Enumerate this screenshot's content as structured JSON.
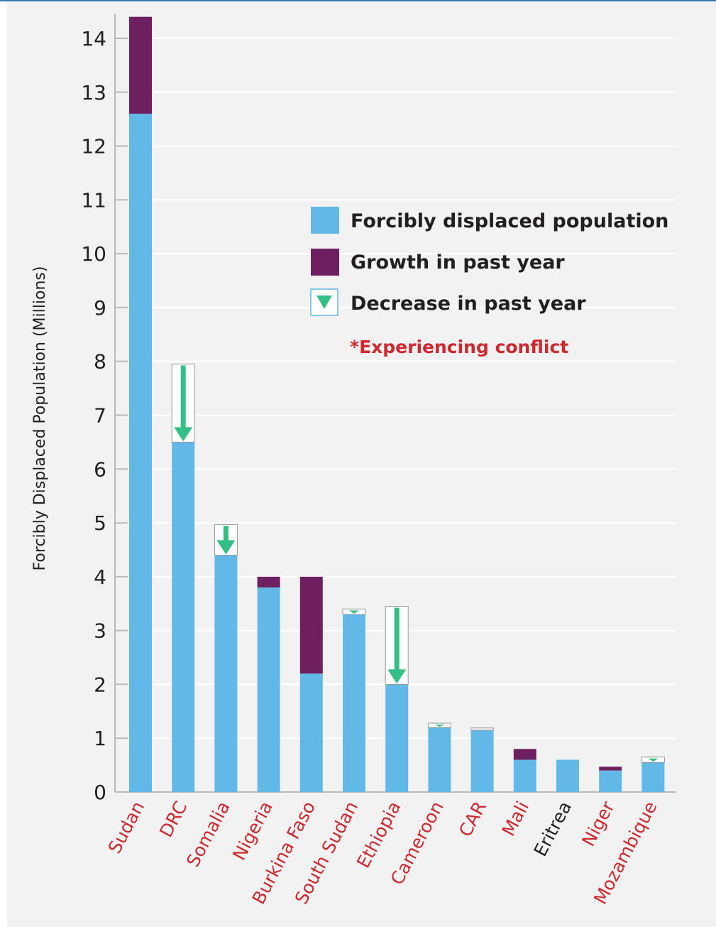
{
  "chart_data": {
    "type": "bar",
    "stacked": true,
    "ylabel": "Forcibly Displaced Population (Millions)",
    "xlabel": "",
    "ylim": [
      0,
      14.4
    ],
    "yticks": [
      0,
      1,
      2,
      3,
      4,
      5,
      6,
      7,
      8,
      9,
      10,
      11,
      12,
      13,
      14
    ],
    "grid": true,
    "categories": [
      "Sudan",
      "DRC",
      "Somalia",
      "Nigeria",
      "Burkina Faso",
      "South Sudan",
      "Ethiopia",
      "Cameroon",
      "CAR",
      "Mali",
      "Eritrea",
      "Niger",
      "Mozambique"
    ],
    "conflict": [
      true,
      true,
      true,
      true,
      true,
      true,
      true,
      true,
      true,
      true,
      false,
      true,
      true
    ],
    "series": [
      {
        "name": "Forcibly displaced population",
        "values": [
          12.6,
          6.5,
          4.4,
          3.8,
          2.2,
          3.3,
          2.0,
          1.2,
          1.15,
          0.6,
          0.6,
          0.4,
          0.55
        ]
      },
      {
        "name": "Growth in past year",
        "values": [
          1.8,
          0,
          0,
          0.2,
          1.8,
          0,
          0,
          0,
          0,
          0.2,
          0,
          0.07,
          0
        ]
      },
      {
        "name": "Decrease in past year",
        "values": [
          0,
          1.45,
          0.57,
          0,
          0,
          0.1,
          1.45,
          0.08,
          0.04,
          0,
          0,
          0,
          0.1
        ]
      }
    ],
    "colors": {
      "displaced": "#62b9e7",
      "growth": "#6d1f5f",
      "decrease": "#34c084",
      "conflict_label": "#d0282f",
      "normal_label": "#231f20",
      "axis": "#b9b9b9",
      "grid": "#ffffff"
    },
    "legend": {
      "position": "top-right",
      "items": [
        {
          "label": "Forcibly displaced population",
          "key": "displaced"
        },
        {
          "label": "Growth in past year",
          "key": "growth"
        },
        {
          "label": "Decrease in past year",
          "key": "decrease"
        }
      ],
      "conflict_note": "*Experiencing conflict"
    }
  }
}
